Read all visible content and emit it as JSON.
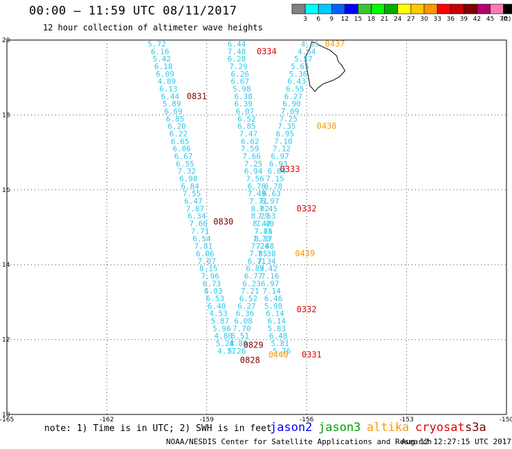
{
  "header": {
    "title": "00:00 – 11:59 UTC 08/11/2017",
    "subtitle": "12 hour collection of altimeter wave heights"
  },
  "color_scale": {
    "unit": "(ft)",
    "ticks": [
      "3",
      "6",
      "9",
      "12",
      "15",
      "18",
      "21",
      "24",
      "27",
      "30",
      "33",
      "36",
      "39",
      "42",
      "45",
      "70"
    ],
    "colors": [
      "#808080",
      "#00ffff",
      "#00c8ff",
      "#0064ff",
      "#0000ff",
      "#32c832",
      "#00ff00",
      "#00aa00",
      "#ffff00",
      "#ffc800",
      "#ff9600",
      "#ff0000",
      "#c80000",
      "#800000",
      "#b4006e",
      "#ff78b4",
      "#000000"
    ]
  },
  "axes": {
    "lon_labels": [
      "-165",
      "-162",
      "-159",
      "-156",
      "-153",
      "-150"
    ],
    "lat_labels": [
      "20",
      "18",
      "16",
      "14",
      "12",
      "10"
    ]
  },
  "chart_data": {
    "type": "scatter",
    "xlim": [
      -165,
      -150
    ],
    "ylim": [
      10,
      20
    ],
    "tracks": [
      {
        "color": "#2fc8e8",
        "points": [
          [
            -160.5,
            19.9,
            "5.72"
          ],
          [
            -160.4,
            19.7,
            "6.16"
          ],
          [
            -160.35,
            19.5,
            "5.42"
          ],
          [
            -160.3,
            19.3,
            "6.18"
          ],
          [
            -160.25,
            19.1,
            "6.09"
          ],
          [
            -160.2,
            18.9,
            "4.89"
          ],
          [
            -160.15,
            18.7,
            "6.13"
          ],
          [
            -160.1,
            18.5,
            "6.44"
          ],
          [
            -160.05,
            18.3,
            "5.89"
          ],
          [
            -160.0,
            18.1,
            "6.69"
          ],
          [
            -159.95,
            17.9,
            "6.85"
          ],
          [
            -159.9,
            17.7,
            "6.20"
          ],
          [
            -159.85,
            17.5,
            "6.22"
          ],
          [
            -159.8,
            17.3,
            "6.65"
          ],
          [
            -159.75,
            17.1,
            "6.06"
          ],
          [
            -159.7,
            16.9,
            "6.67"
          ],
          [
            -159.65,
            16.7,
            "6.55"
          ],
          [
            -159.6,
            16.5,
            "7.32"
          ],
          [
            -159.55,
            16.3,
            "6.98"
          ],
          [
            -159.5,
            16.1,
            "6.84"
          ],
          [
            -159.45,
            15.9,
            "7.55"
          ],
          [
            -159.4,
            15.7,
            "6.47"
          ],
          [
            -159.35,
            15.5,
            "7.87"
          ],
          [
            -159.3,
            15.3,
            "6.34"
          ],
          [
            -159.25,
            15.1,
            "7.60"
          ],
          [
            -159.2,
            14.9,
            "7.71"
          ],
          [
            -159.15,
            14.7,
            "6.54"
          ],
          [
            -159.1,
            14.5,
            "7.81"
          ],
          [
            -159.05,
            14.3,
            "6.06"
          ],
          [
            -159.0,
            14.1,
            "7.07"
          ],
          [
            -158.95,
            13.9,
            "8.15"
          ],
          [
            -158.9,
            13.7,
            "7.96"
          ],
          [
            -158.85,
            13.5,
            "6.73"
          ],
          [
            -158.8,
            13.3,
            "6.03"
          ],
          [
            -158.75,
            13.1,
            "6.53"
          ],
          [
            -158.7,
            12.9,
            "6.40"
          ],
          [
            -158.65,
            12.7,
            "4.53"
          ],
          [
            -158.6,
            12.5,
            "5.87"
          ],
          [
            -158.55,
            12.3,
            "5.96"
          ],
          [
            -158.5,
            12.1,
            "4.80"
          ],
          [
            -158.45,
            11.9,
            "5.28"
          ],
          [
            -158.4,
            11.7,
            "4.77"
          ]
        ]
      },
      {
        "color": "#2fc8e8",
        "points": [
          [
            -158.1,
            19.9,
            "6.44"
          ],
          [
            -158.1,
            19.7,
            "7.48"
          ],
          [
            -158.1,
            19.5,
            "6.28"
          ],
          [
            -158.05,
            19.3,
            "7.29"
          ],
          [
            -158.0,
            19.1,
            "6.26"
          ],
          [
            -158.0,
            18.9,
            "6.67"
          ],
          [
            -157.95,
            18.7,
            "5.98"
          ],
          [
            -157.9,
            18.5,
            "6.38"
          ],
          [
            -157.9,
            18.3,
            "6.39"
          ],
          [
            -157.85,
            18.1,
            "6.07"
          ],
          [
            -157.8,
            17.9,
            "6.52"
          ],
          [
            -157.8,
            17.7,
            "6.85"
          ],
          [
            -157.75,
            17.5,
            "7.47"
          ],
          [
            -157.7,
            17.3,
            "6.62"
          ],
          [
            -157.7,
            17.1,
            "7.59"
          ],
          [
            -157.65,
            16.9,
            "7.66"
          ],
          [
            -157.6,
            16.7,
            "7.25"
          ],
          [
            -157.6,
            16.5,
            "6.94"
          ],
          [
            -157.55,
            16.3,
            "7.56"
          ],
          [
            -157.5,
            16.1,
            "6.76"
          ],
          [
            -157.5,
            15.9,
            "7.49"
          ],
          [
            -157.45,
            15.7,
            "7.71"
          ],
          [
            -157.4,
            15.5,
            "8.02"
          ],
          [
            -157.4,
            15.3,
            "8.29"
          ],
          [
            -157.35,
            15.1,
            "8.42"
          ],
          [
            -157.3,
            14.9,
            "7.71"
          ],
          [
            -157.3,
            14.7,
            "8.37"
          ],
          [
            -157.25,
            14.5,
            "7.68"
          ],
          [
            -157.2,
            14.3,
            "7.38"
          ],
          [
            -157.2,
            14.1,
            "7.34"
          ],
          [
            -157.15,
            13.9,
            "7.42"
          ],
          [
            -157.1,
            13.7,
            "7.16"
          ],
          [
            -157.1,
            13.5,
            "6.97"
          ],
          [
            -157.05,
            13.3,
            "7.14"
          ],
          [
            -157.0,
            13.1,
            "6.46"
          ],
          [
            -157.0,
            12.9,
            "5.98"
          ],
          [
            -156.95,
            12.7,
            "6.14"
          ],
          [
            -156.9,
            12.5,
            "6.14"
          ],
          [
            -156.9,
            12.3,
            "5.83"
          ],
          [
            -156.85,
            12.1,
            "6.48"
          ],
          [
            -156.8,
            11.9,
            "5.81"
          ],
          [
            -156.75,
            11.7,
            "5.76"
          ]
        ]
      },
      {
        "color": "#2fc8e8",
        "points": [
          [
            -155.9,
            19.9,
            "4.55"
          ],
          [
            -156.0,
            19.7,
            "4.64"
          ],
          [
            -156.1,
            19.5,
            "5.37"
          ],
          [
            -156.2,
            19.3,
            "5.65"
          ],
          [
            -156.25,
            19.1,
            "5.36"
          ],
          [
            -156.3,
            18.9,
            "6.43"
          ],
          [
            -156.35,
            18.7,
            "6.55"
          ],
          [
            -156.4,
            18.5,
            "6.27"
          ],
          [
            -156.45,
            18.3,
            "6.90"
          ],
          [
            -156.5,
            18.1,
            "7.09"
          ],
          [
            -156.55,
            17.9,
            "7.25"
          ],
          [
            -156.6,
            17.7,
            "7.35"
          ],
          [
            -156.65,
            17.5,
            "6.95"
          ],
          [
            -156.7,
            17.3,
            "7.10"
          ],
          [
            -156.75,
            17.1,
            "7.12"
          ],
          [
            -156.8,
            16.9,
            "6.97"
          ],
          [
            -156.85,
            16.7,
            "6.93"
          ],
          [
            -156.9,
            16.5,
            "6.84"
          ],
          [
            -156.95,
            16.3,
            "7.15"
          ],
          [
            -157.0,
            16.1,
            "6.78"
          ],
          [
            -157.05,
            15.9,
            "6.63"
          ],
          [
            -157.1,
            15.7,
            "6.97"
          ],
          [
            -157.15,
            15.5,
            "7.45"
          ],
          [
            -157.2,
            15.3,
            "7.53"
          ],
          [
            -157.25,
            15.1,
            "7.40"
          ],
          [
            -157.3,
            14.9,
            "7.86"
          ],
          [
            -157.35,
            14.7,
            "7.73"
          ],
          [
            -157.4,
            14.5,
            "7.24"
          ],
          [
            -157.45,
            14.3,
            "7.85"
          ],
          [
            -157.5,
            14.1,
            "6.71"
          ],
          [
            -157.55,
            13.9,
            "6.89"
          ],
          [
            -157.6,
            13.7,
            "6.77"
          ],
          [
            -157.65,
            13.5,
            "6.23"
          ],
          [
            -157.7,
            13.3,
            "7.21"
          ],
          [
            -157.75,
            13.1,
            "6.52"
          ],
          [
            -157.8,
            12.9,
            "6.27"
          ],
          [
            -157.85,
            12.7,
            "6.36"
          ],
          [
            -157.9,
            12.5,
            "6.08"
          ],
          [
            -157.95,
            12.3,
            "7.70"
          ],
          [
            -158.0,
            12.1,
            "6.51"
          ],
          [
            -158.05,
            11.9,
            "4.89"
          ],
          [
            -158.1,
            11.7,
            "5.26"
          ]
        ]
      }
    ],
    "pass_labels": [
      {
        "text": "0334",
        "lon": -157.2,
        "lat": 19.7,
        "color": "#e00000"
      },
      {
        "text": "0437",
        "lon": -155.15,
        "lat": 19.9,
        "color": "#ff9900"
      },
      {
        "text": "0831",
        "lon": -159.3,
        "lat": 18.5,
        "color": "#800000"
      },
      {
        "text": "0438",
        "lon": -155.4,
        "lat": 17.7,
        "color": "#ff9900"
      },
      {
        "text": "0333",
        "lon": -156.5,
        "lat": 16.55,
        "color": "#e00000"
      },
      {
        "text": "0332",
        "lon": -156.0,
        "lat": 15.5,
        "color": "#e00000"
      },
      {
        "text": "0830",
        "lon": -158.5,
        "lat": 15.15,
        "color": "#800000"
      },
      {
        "text": "0439",
        "lon": -156.05,
        "lat": 14.3,
        "color": "#ff9900"
      },
      {
        "text": "0332",
        "lon": -156.0,
        "lat": 12.8,
        "color": "#e00000"
      },
      {
        "text": "0829",
        "lon": -157.6,
        "lat": 11.85,
        "color": "#800000"
      },
      {
        "text": "0440",
        "lon": -156.85,
        "lat": 11.6,
        "color": "#ff9900"
      },
      {
        "text": "0331",
        "lon": -155.85,
        "lat": 11.6,
        "color": "#e00000"
      },
      {
        "text": "0828",
        "lon": -157.7,
        "lat": 11.45,
        "color": "#800000"
      }
    ]
  },
  "footer": {
    "note": "note:  1) Time is in UTC; 2) SWH is in feet",
    "satellites": [
      {
        "name": "jason2",
        "color": "#0000ff"
      },
      {
        "name": "jason3",
        "color": "#00a000"
      },
      {
        "name": "altika",
        "color": "#ff9900"
      },
      {
        "name": "cryosat",
        "color": "#e00000"
      },
      {
        "name": "s3a",
        "color": "#800000"
      }
    ],
    "credit": "NOAA/NESDIS Center for Satellite Applications and Research",
    "timestamp": "Aug 12 12:27:15 UTC 2017"
  }
}
